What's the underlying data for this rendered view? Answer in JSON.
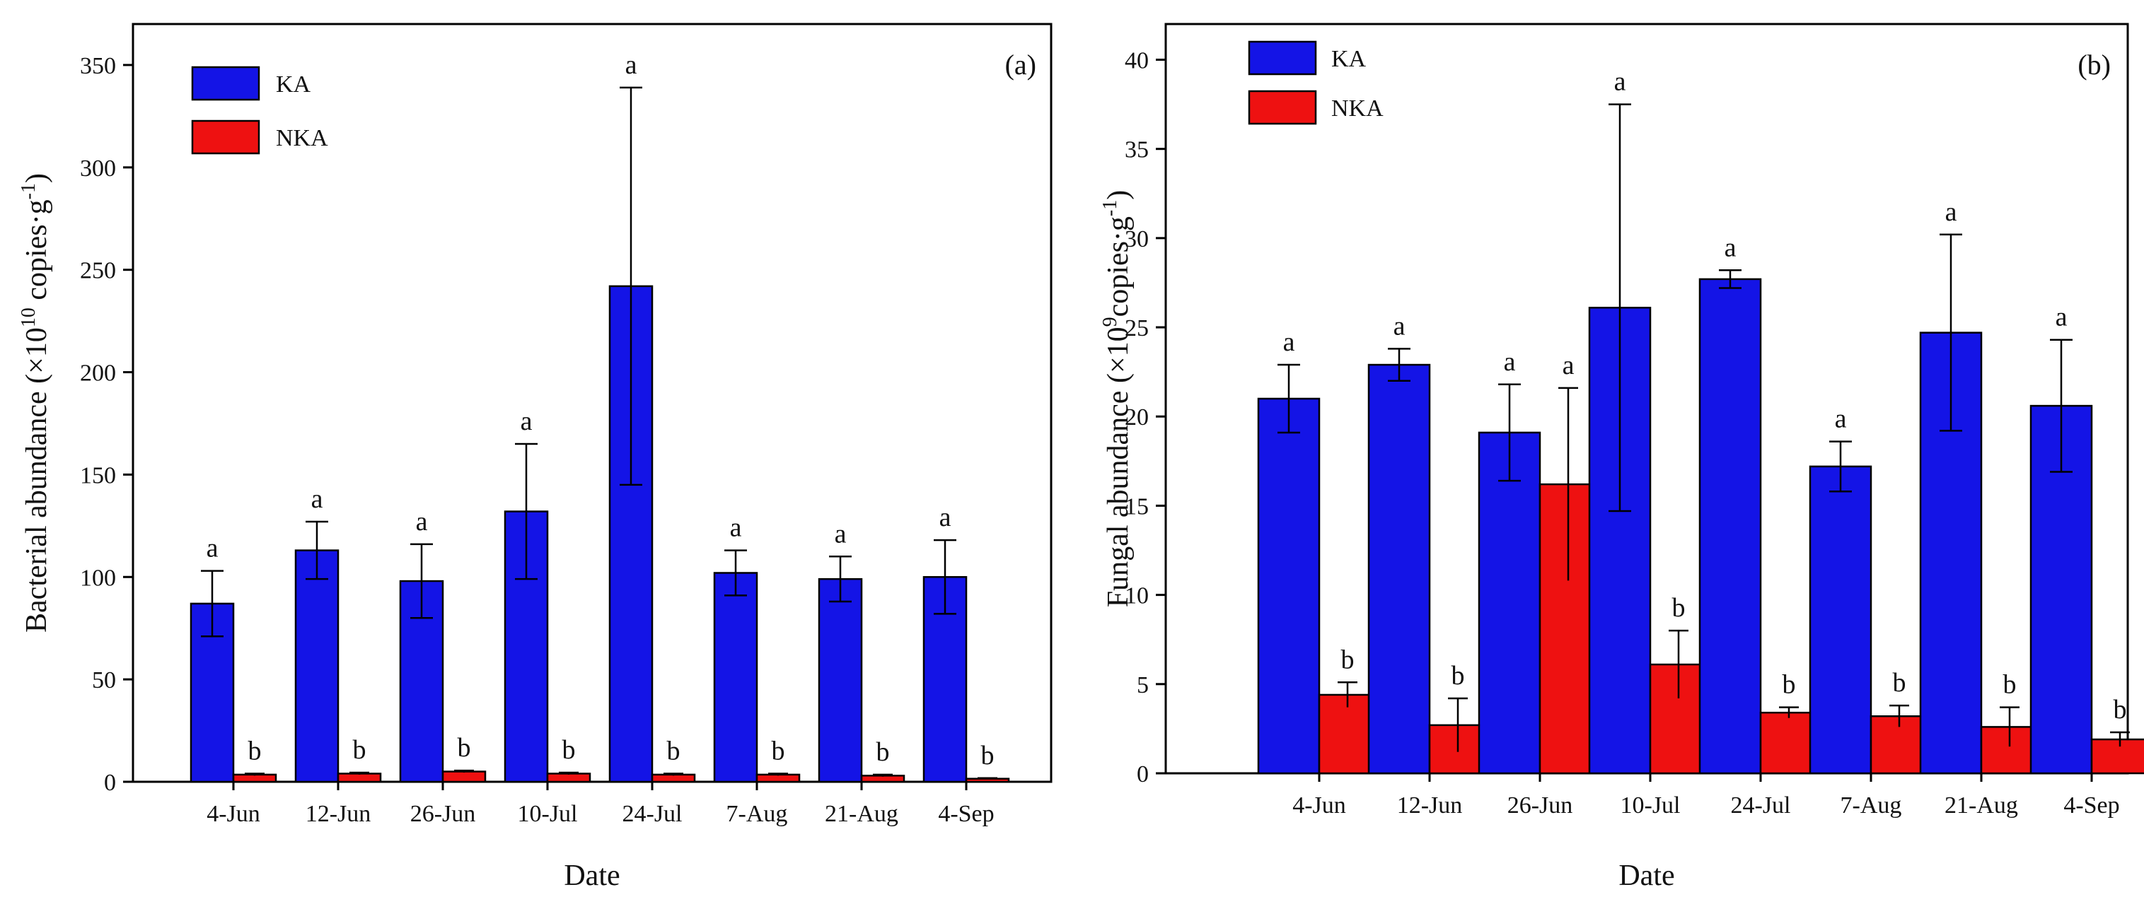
{
  "chart_data": [
    {
      "type": "bar",
      "panel_label": "(a)",
      "categories": [
        "4-Jun",
        "12-Jun",
        "26-Jun",
        "10-Jul",
        "24-Jul",
        "7-Aug",
        "21-Aug",
        "4-Sep"
      ],
      "xlabel": "Date",
      "ylabel_parts": {
        "pre": "Bacterial abundance (×10",
        "sup": "10",
        "mid": " copies·g",
        "sup2": "-1",
        "post": ")"
      },
      "ylim": [
        0,
        370
      ],
      "yticks": [
        0,
        50,
        100,
        150,
        200,
        250,
        300,
        350
      ],
      "grid": false,
      "legend_position": "top-left",
      "series": [
        {
          "name": "KA",
          "color": "#1414e6",
          "values": [
            87,
            113,
            98,
            132,
            242,
            102,
            99,
            100
          ],
          "errors": [
            16,
            14,
            18,
            33,
            97,
            11,
            11,
            18
          ],
          "sig": [
            "a",
            "a",
            "a",
            "a",
            "a",
            "a",
            "a",
            "a"
          ]
        },
        {
          "name": "NKA",
          "color": "#ee1111",
          "values": [
            3.5,
            4,
            5,
            4,
            3.5,
            3.5,
            3,
            1.5
          ],
          "errors": [
            0.5,
            0.5,
            0.5,
            0.5,
            0.5,
            0.5,
            0.5,
            0.3
          ],
          "sig": [
            "b",
            "b",
            "b",
            "b",
            "b",
            "b",
            "b",
            "b"
          ]
        }
      ]
    },
    {
      "type": "bar",
      "panel_label": "(b)",
      "categories": [
        "4-Jun",
        "12-Jun",
        "26-Jun",
        "10-Jul",
        "24-Jul",
        "7-Aug",
        "21-Aug",
        "4-Sep"
      ],
      "xlabel": "Date",
      "ylabel_parts": {
        "pre": "Fungal abundance (×10",
        "sup": "9",
        "mid": "copies·g",
        "sup2": "-1",
        "post": ")"
      },
      "ylim": [
        0,
        42
      ],
      "yticks": [
        0,
        5,
        10,
        15,
        20,
        25,
        30,
        35,
        40
      ],
      "grid": false,
      "legend_position": "top-left",
      "series": [
        {
          "name": "KA",
          "color": "#1414e6",
          "values": [
            21,
            22.9,
            19.1,
            26.1,
            27.7,
            17.2,
            24.7,
            20.6
          ],
          "errors": [
            1.9,
            0.9,
            2.7,
            11.4,
            0.5,
            1.4,
            5.5,
            3.7
          ],
          "sig": [
            "a",
            "a",
            "a",
            "a",
            "a",
            "a",
            "a",
            "a"
          ]
        },
        {
          "name": "NKA",
          "color": "#ee1111",
          "values": [
            4.4,
            2.7,
            16.2,
            6.1,
            3.4,
            3.2,
            2.6,
            1.9
          ],
          "errors": [
            0.7,
            1.5,
            5.4,
            1.9,
            0.3,
            0.6,
            1.1,
            0.4
          ],
          "sig": [
            "b",
            "b",
            "a",
            "b",
            "b",
            "b",
            "b",
            "b"
          ]
        }
      ]
    }
  ]
}
